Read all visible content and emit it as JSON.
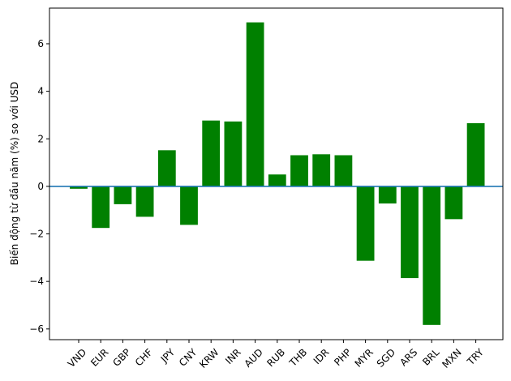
{
  "chart_data": {
    "type": "bar",
    "title": "",
    "xlabel": "",
    "ylabel": "Biến động từ đầu năm (%) so với USD",
    "categories": [
      "VND",
      "EUR",
      "GBP",
      "CHF",
      "JPY",
      "CNY",
      "KRW",
      "INR",
      "AUD",
      "RUB",
      "THB",
      "IDR",
      "PHP",
      "MYR",
      "SGD",
      "ARS",
      "BRL",
      "MXN",
      "TRY"
    ],
    "values": [
      -0.1,
      -1.75,
      -0.75,
      -1.28,
      1.52,
      -1.62,
      2.77,
      2.73,
      6.9,
      0.5,
      1.31,
      1.35,
      1.31,
      -3.13,
      -0.72,
      -3.86,
      -5.83,
      -1.38,
      2.66
    ],
    "ylim": [
      -6.45,
      7.5
    ],
    "yticks": [
      -6,
      -4,
      -2,
      0,
      2,
      4,
      6
    ],
    "bar_color": "#008000",
    "baseline": 0,
    "baseline_color": "#1f77b4",
    "grid": false,
    "legend": "none"
  }
}
